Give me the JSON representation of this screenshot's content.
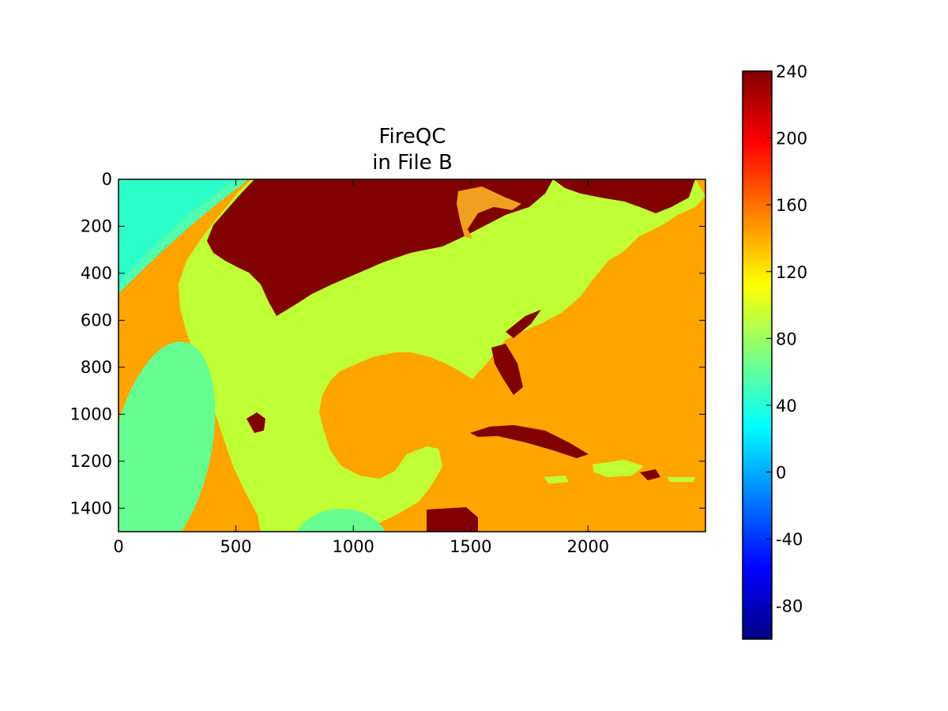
{
  "chart_data": {
    "type": "heatmap",
    "title_lines": [
      "FireQC",
      "in File B"
    ],
    "xlabel": "",
    "ylabel": "",
    "x_range": [
      0,
      2500
    ],
    "y_range": [
      0,
      1500
    ],
    "y_inverted": true,
    "x_ticks": [
      "0",
      "500",
      "1000",
      "1500",
      "2000"
    ],
    "y_ticks": [
      "0",
      "200",
      "400",
      "600",
      "800",
      "1000",
      "1200",
      "1400"
    ],
    "colormap": "jet",
    "colorbar": {
      "vmin": -100,
      "vmax": 240,
      "ticks": [
        "-80",
        "-40",
        "0",
        "40",
        "80",
        "120",
        "160",
        "200",
        "240"
      ],
      "placement": "right"
    },
    "grid": false,
    "dominant_values": {
      "ocean_background": 160,
      "land": 110,
      "dark_patches": 240,
      "ellipse_regions": 70,
      "corner_region": 50
    },
    "colors": {
      "ocean": "#ffa500",
      "land": "#c0ff36",
      "land_light": "#a8f55a",
      "dark": "#800000",
      "ellipse": "#66ff8f",
      "corner": "#2effc8",
      "lakes": "#f0a020"
    }
  }
}
